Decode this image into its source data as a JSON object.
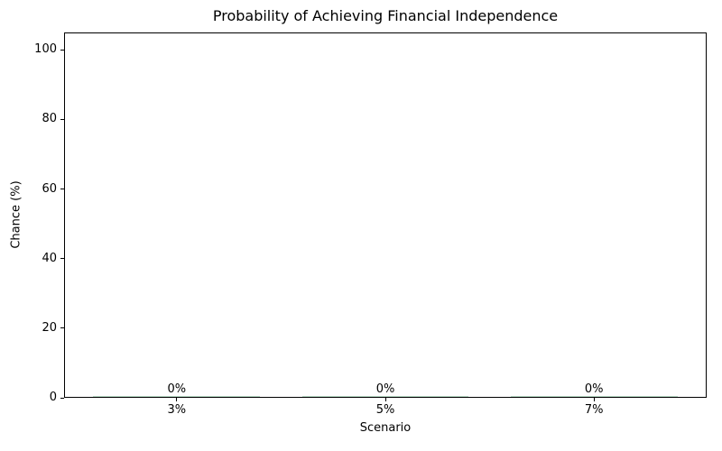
{
  "chart_data": {
    "type": "bar",
    "title": "Probability of Achieving Financial Independence",
    "xlabel": "Scenario",
    "ylabel": "Chance (%)",
    "categories": [
      "3%",
      "5%",
      "7%"
    ],
    "values": [
      0,
      0,
      0
    ],
    "bar_labels": [
      "0%",
      "0%",
      "0%"
    ],
    "yticks": [
      0,
      20,
      40,
      60,
      80,
      100
    ],
    "ylim": [
      0,
      105
    ],
    "xlim": [
      -0.54,
      2.54
    ],
    "bar_width": 0.8,
    "grid": false,
    "legend_position": "none",
    "colors": {
      "bar": "#b9dcc6",
      "text": "#000000",
      "spine": "#000000",
      "background": "#ffffff"
    }
  }
}
